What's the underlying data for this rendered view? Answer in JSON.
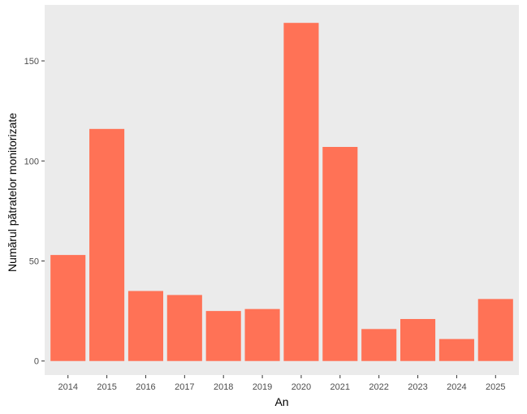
{
  "chart_data": {
    "type": "bar",
    "xlabel": "An",
    "ylabel": "Numărul pătratelor monitorizate",
    "categories": [
      "2014",
      "2015",
      "2016",
      "2017",
      "2018",
      "2019",
      "2020",
      "2021",
      "2022",
      "2023",
      "2024",
      "2025"
    ],
    "values": [
      53,
      116,
      35,
      33,
      25,
      26,
      169,
      107,
      16,
      21,
      11,
      31
    ],
    "ylim": [
      -7,
      178
    ],
    "yticks": [
      0,
      50,
      100,
      150
    ],
    "grid": false,
    "legend": "none",
    "colors": {
      "bar": "#FF7256",
      "panel": "#EBEBEB",
      "tick": "#333333"
    }
  }
}
